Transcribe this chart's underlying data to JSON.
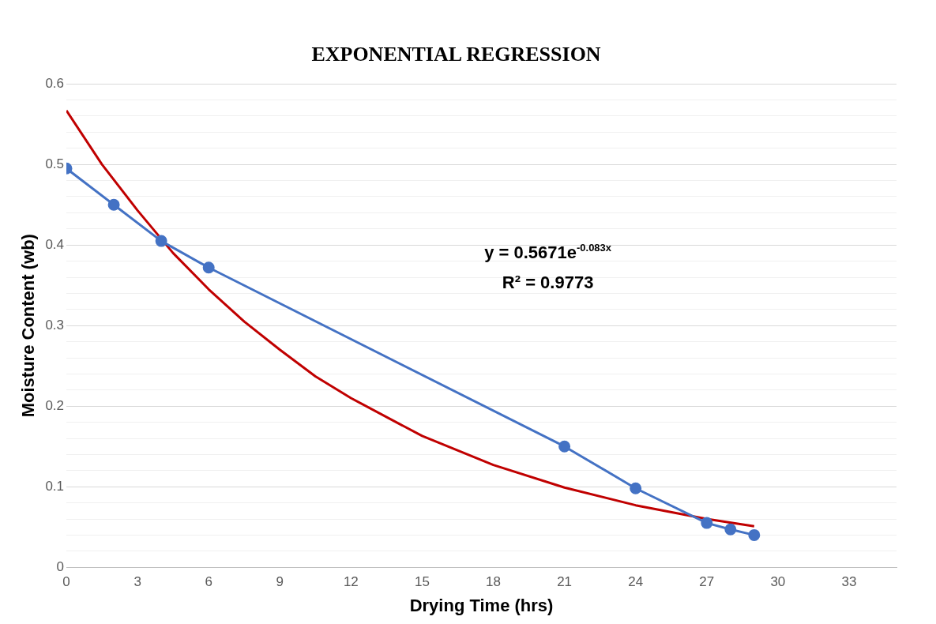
{
  "chart_data": {
    "type": "line",
    "title": "EXPONENTIAL REGRESSION",
    "xlabel": "Drying Time (hrs)",
    "ylabel": "Moisture Content (wb)",
    "series": [
      {
        "color": "#4472c4",
        "marker": "circle",
        "x": [
          0,
          2,
          4,
          6,
          21,
          24,
          27,
          28,
          29
        ],
        "values": [
          0.495,
          0.45,
          0.405,
          0.372,
          0.15,
          0.098,
          0.055,
          0.047,
          0.04
        ]
      },
      {
        "color": "#c00000",
        "marker": "none",
        "x": [
          0,
          1.5,
          3,
          4.5,
          6,
          7.5,
          9,
          10.5,
          12,
          15,
          18,
          21,
          24,
          27,
          29
        ],
        "values": [
          0.567,
          0.5,
          0.443,
          0.39,
          0.345,
          0.305,
          0.27,
          0.237,
          0.21,
          0.163,
          0.127,
          0.099,
          0.077,
          0.06,
          0.051
        ]
      }
    ],
    "xlim": [
      0,
      35
    ],
    "xticks": [
      0,
      3,
      6,
      9,
      12,
      15,
      18,
      21,
      24,
      27,
      30,
      33
    ],
    "ylim": [
      0,
      0.6
    ],
    "yticks": [
      0,
      {
        "value": 0.02,
        "label": null
      },
      {
        "value": 0.04,
        "label": null
      },
      {
        "value": 0.06,
        "label": null
      },
      {
        "value": 0.08,
        "label": null
      },
      0.1,
      {
        "value": 0.12,
        "label": null
      },
      {
        "value": 0.14,
        "label": null
      },
      {
        "value": 0.16,
        "label": null
      },
      {
        "value": 0.18,
        "label": null
      },
      0.2,
      {
        "value": 0.22,
        "label": null
      },
      {
        "value": 0.24,
        "label": null
      },
      {
        "value": 0.26,
        "label": null
      },
      {
        "value": 0.28,
        "label": null
      },
      0.3,
      {
        "value": 0.32,
        "label": null
      },
      {
        "value": 0.34,
        "label": null
      },
      {
        "value": 0.36,
        "label": null
      },
      {
        "value": 0.38,
        "label": null
      },
      0.4,
      {
        "value": 0.42,
        "label": null
      },
      {
        "value": 0.44,
        "label": null
      },
      {
        "value": 0.46,
        "label": null
      },
      {
        "value": 0.48,
        "label": null
      },
      0.5,
      {
        "value": 0.52,
        "label": null
      },
      {
        "value": 0.54,
        "label": null
      },
      {
        "value": 0.56,
        "label": null
      },
      {
        "value": 0.58,
        "label": null
      },
      0.6
    ],
    "grid": "y",
    "legend": false,
    "line_style": "solid",
    "annotations": [
      "y = 0.5671e$^{-0.083x}$",
      "R² = 0.9773"
    ]
  }
}
